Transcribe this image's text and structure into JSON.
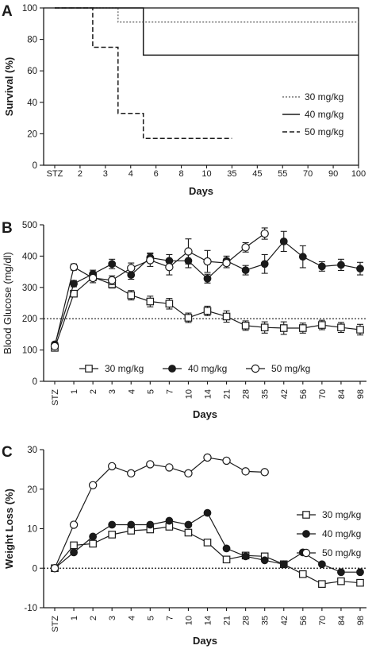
{
  "chart_data": [
    {
      "panel": "A",
      "type": "line",
      "step": true,
      "xlabel": "Days",
      "ylabel": "Survival (%)",
      "categories": [
        "STZ",
        "2",
        "3",
        "4",
        "6",
        "8",
        "10",
        "35",
        "45",
        "55",
        "70",
        "90",
        "100"
      ],
      "ylim": [
        0,
        100
      ],
      "yticks": [
        "0",
        "20",
        "40",
        "60",
        "80",
        "100"
      ],
      "legend_position": "right",
      "series": [
        {
          "name": "30 mg/kg",
          "style": "dotted",
          "color": "#777777",
          "points": [
            [
              0,
              100
            ],
            [
              2.5,
              100
            ],
            [
              2.5,
              91
            ],
            [
              12,
              91
            ]
          ]
        },
        {
          "name": "40 mg/kg",
          "style": "solid",
          "color": "#1a1a1a",
          "points": [
            [
              0,
              100
            ],
            [
              3.5,
              100
            ],
            [
              3.5,
              70
            ],
            [
              12,
              70
            ]
          ]
        },
        {
          "name": "50 mg/kg",
          "style": "dashed",
          "color": "#1a1a1a",
          "points": [
            [
              0,
              100
            ],
            [
              1.5,
              100
            ],
            [
              1.5,
              75
            ],
            [
              2.5,
              75
            ],
            [
              2.5,
              33
            ],
            [
              3.5,
              33
            ],
            [
              3.5,
              17
            ],
            [
              7,
              17
            ]
          ]
        }
      ]
    },
    {
      "panel": "B",
      "type": "line",
      "xlabel": "Days",
      "ylabel": "Blood Glucose (mg/dl)",
      "categories": [
        "STZ",
        "1",
        "2",
        "3",
        "4",
        "5",
        "7",
        "10",
        "14",
        "21",
        "28",
        "35",
        "42",
        "56",
        "70",
        "84",
        "98"
      ],
      "ylim": [
        0,
        500
      ],
      "yticks": [
        "0",
        "100",
        "200",
        "300",
        "400",
        "500"
      ],
      "reference_line": 200,
      "legend_position": "bottom",
      "series": [
        {
          "name": "30 mg/kg",
          "marker": "square-open",
          "values": [
            107,
            280,
            333,
            310,
            275,
            255,
            248,
            203,
            225,
            207,
            178,
            172,
            170,
            170,
            180,
            172,
            165
          ],
          "errors": [
            6,
            10,
            12,
            12,
            15,
            17,
            17,
            15,
            15,
            18,
            15,
            18,
            20,
            16,
            15,
            16,
            17
          ]
        },
        {
          "name": "40 mg/kg",
          "marker": "circle-filled",
          "values": [
            118,
            312,
            343,
            375,
            340,
            395,
            385,
            385,
            328,
            385,
            355,
            375,
            447,
            398,
            367,
            372,
            360
          ],
          "errors": [
            6,
            10,
            12,
            15,
            14,
            15,
            20,
            22,
            14,
            15,
            15,
            30,
            32,
            35,
            15,
            18,
            20
          ]
        },
        {
          "name": "50 mg/kg",
          "marker": "circle-open",
          "values": [
            112,
            365,
            330,
            323,
            362,
            387,
            365,
            415,
            383,
            378,
            428,
            472,
            null,
            null,
            null,
            null,
            null
          ],
          "errors": [
            6,
            10,
            15,
            14,
            16,
            20,
            25,
            40,
            35,
            15,
            15,
            18,
            null,
            null,
            null,
            null,
            null
          ]
        }
      ]
    },
    {
      "panel": "C",
      "type": "line",
      "xlabel": "Days",
      "ylabel": "Weight Loss (%)",
      "categories": [
        "STZ",
        "1",
        "2",
        "3",
        "4",
        "5",
        "7",
        "10",
        "14",
        "21",
        "28",
        "35",
        "42",
        "56",
        "70",
        "84",
        "98"
      ],
      "ylim": [
        -10,
        30
      ],
      "yticks": [
        "-10",
        "0",
        "10",
        "20",
        "30"
      ],
      "reference_line": 0,
      "legend_position": "right",
      "series": [
        {
          "name": "30 mg/kg",
          "marker": "square-open",
          "values": [
            0,
            5.8,
            6.2,
            8.5,
            9.5,
            9.8,
            10.5,
            9,
            6.5,
            2.2,
            3.2,
            3,
            1,
            -1.5,
            -4,
            -3.3,
            -3.7
          ]
        },
        {
          "name": "40 mg/kg",
          "marker": "circle-filled",
          "values": [
            0,
            4,
            8,
            11,
            11,
            11,
            12,
            11,
            14,
            5,
            3,
            2,
            1,
            4,
            1,
            -1,
            -1
          ]
        },
        {
          "name": "50 mg/kg",
          "marker": "circle-open",
          "values": [
            0,
            11,
            21,
            25.8,
            24,
            26.3,
            25.5,
            24,
            28,
            27.2,
            24.5,
            24.3,
            null,
            null,
            null,
            null,
            null
          ]
        }
      ]
    }
  ]
}
